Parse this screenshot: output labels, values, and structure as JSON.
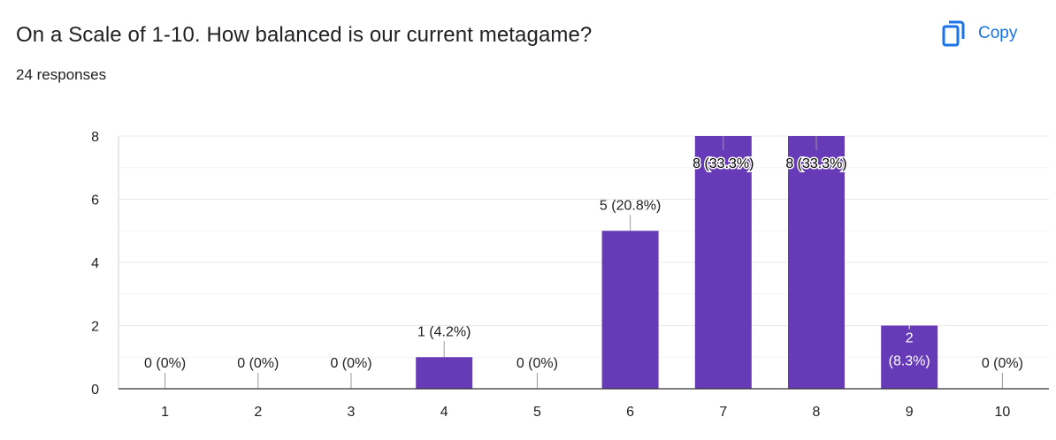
{
  "header": {
    "title": "On a Scale of 1-10. How balanced is our current metagame?",
    "responses": "24 responses",
    "copy_label": "Copy",
    "copy_icon": "copy-icon"
  },
  "colors": {
    "bar": "#673ab7",
    "accent": "#1a73e8",
    "grid": "#e8e8e8",
    "axis": "#333333",
    "text": "#202124"
  },
  "chart_data": {
    "type": "bar",
    "categories": [
      "1",
      "2",
      "3",
      "4",
      "5",
      "6",
      "7",
      "8",
      "9",
      "10"
    ],
    "values": [
      0,
      0,
      0,
      1,
      0,
      5,
      8,
      8,
      2,
      0
    ],
    "data_labels": [
      "0 (0%)",
      "0 (0%)",
      "0 (0%)",
      "1 (4.2%)",
      "0 (0%)",
      "5 (20.8%)",
      "8 (33.3%)",
      "8 (33.3%)",
      "2 (8.3%)",
      "0 (0%)"
    ],
    "ylim": [
      0,
      8
    ],
    "yticks": [
      0,
      2,
      4,
      6,
      8
    ],
    "grid": true,
    "xlabel": "",
    "ylabel": ""
  }
}
